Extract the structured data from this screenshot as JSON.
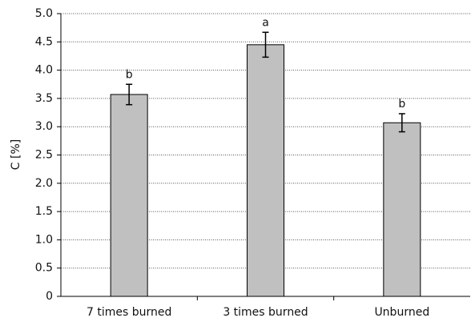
{
  "chart_data": {
    "type": "bar",
    "ylabel": "C [%]",
    "categories": [
      "7 times burned",
      "3 times burned",
      "Unburned"
    ],
    "values": [
      3.57,
      4.45,
      3.07
    ],
    "errors": [
      0.18,
      0.22,
      0.16
    ],
    "annotations": [
      "b",
      "a",
      "b"
    ],
    "color": "#c0c0c0",
    "ylim": [
      0,
      5
    ],
    "yticks": [
      0,
      0.5,
      {
        "value": 1,
        "label": "1.0"
      },
      1.5,
      {
        "value": 2,
        "label": "2.0"
      },
      2.5,
      {
        "value": 3,
        "label": "3.0"
      },
      3.5,
      {
        "value": 4,
        "label": "4.0"
      },
      4.5,
      {
        "value": 5,
        "label": "5.0"
      }
    ],
    "grid": true
  }
}
